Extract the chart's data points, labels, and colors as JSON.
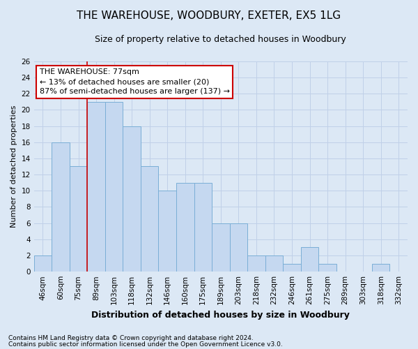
{
  "title": "THE WAREHOUSE, WOODBURY, EXETER, EX5 1LG",
  "subtitle": "Size of property relative to detached houses in Woodbury",
  "xlabel": "Distribution of detached houses by size in Woodbury",
  "ylabel": "Number of detached properties",
  "categories": [
    "46sqm",
    "60sqm",
    "75sqm",
    "89sqm",
    "103sqm",
    "118sqm",
    "132sqm",
    "146sqm",
    "160sqm",
    "175sqm",
    "189sqm",
    "203sqm",
    "218sqm",
    "232sqm",
    "246sqm",
    "261sqm",
    "275sqm",
    "289sqm",
    "303sqm",
    "318sqm",
    "332sqm"
  ],
  "values": [
    2,
    16,
    13,
    21,
    21,
    18,
    13,
    10,
    11,
    11,
    6,
    6,
    2,
    2,
    1,
    3,
    1,
    0,
    0,
    1,
    0
  ],
  "bar_color": "#c5d8f0",
  "bar_edge_color": "#7aaed6",
  "vline_x": 2.5,
  "vline_color": "#cc0000",
  "annotation_title": "THE WAREHOUSE: 77sqm",
  "annotation_line1": "← 13% of detached houses are smaller (20)",
  "annotation_line2": "87% of semi-detached houses are larger (137) →",
  "annotation_box_facecolor": "#ffffff",
  "annotation_box_edgecolor": "#cc0000",
  "ylim": [
    0,
    26
  ],
  "yticks": [
    0,
    2,
    4,
    6,
    8,
    10,
    12,
    14,
    16,
    18,
    20,
    22,
    24,
    26
  ],
  "grid_color": "#c0d0e8",
  "bg_color": "#dce8f5",
  "title_fontsize": 11,
  "subtitle_fontsize": 9,
  "ylabel_fontsize": 8,
  "xlabel_fontsize": 9,
  "tick_fontsize": 7.5,
  "annotation_fontsize": 8,
  "footer1": "Contains HM Land Registry data © Crown copyright and database right 2024.",
  "footer2": "Contains public sector information licensed under the Open Government Licence v3.0.",
  "footer_fontsize": 6.5
}
